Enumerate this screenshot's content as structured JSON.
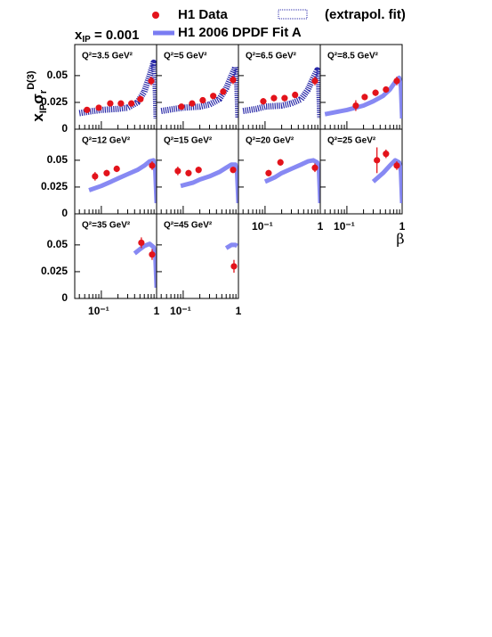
{
  "chart_data": {
    "type": "scatter",
    "xip_label": {
      "main": "x",
      "sub": "IP",
      "rest": " = 0.001"
    },
    "ylabel": {
      "main": "x",
      "sub": "IP",
      "sigma": "σ",
      "sigma_sub": "r",
      "sup": "D(3)"
    },
    "xlabel": "β",
    "log_x": true,
    "xlim": [
      0.033,
      1
    ],
    "xticks": [
      {
        "value": 0.1,
        "label": "10⁻¹"
      },
      1
    ],
    "xminor": [
      0.04,
      0.05,
      0.06,
      0.07,
      0.08,
      0.09,
      0.2,
      0.3,
      0.4,
      0.5,
      0.6,
      0.7,
      0.8,
      0.9
    ],
    "ylim": [
      0,
      0.079
    ],
    "yticks": [
      0,
      0.025,
      0.05
    ],
    "series": [
      {
        "name": "H1 Data",
        "color": "#e3131b"
      },
      {
        "name": "H1 2006 DPDF Fit A",
        "color": "#7a7cf2"
      },
      {
        "name": "(extrapol. fit)",
        "color": "#2a2aa8"
      }
    ],
    "panels": [
      {
        "label": "Q²=3.5 GeV²",
        "fit": "extrapol",
        "x": [
          0.055,
          0.09,
          0.145,
          0.226,
          0.35,
          0.51,
          0.8
        ],
        "values": [
          0.018,
          0.02,
          0.024,
          0.024,
          0.024,
          0.028,
          0.045
        ],
        "errors": [
          0.002,
          0.002,
          0.002,
          0.002,
          0.002,
          0.002,
          0.004
        ],
        "fit_x": [
          0.04,
          0.07,
          0.1,
          0.2,
          0.3,
          0.45,
          0.6,
          0.75,
          0.88,
          0.95,
          1.0
        ],
        "fit_values": [
          0.015,
          0.017,
          0.018,
          0.019,
          0.02,
          0.025,
          0.035,
          0.05,
          0.062,
          0.05,
          0.01
        ]
      },
      {
        "label": "Q²=5 GeV²",
        "fit": "extrapol",
        "x": [
          0.093,
          0.145,
          0.226,
          0.35,
          0.53,
          0.8
        ],
        "values": [
          0.021,
          0.024,
          0.027,
          0.031,
          0.035,
          0.046
        ],
        "errors": [
          0.002,
          0.002,
          0.002,
          0.002,
          0.002,
          0.004
        ],
        "fit_x": [
          0.04,
          0.07,
          0.1,
          0.2,
          0.3,
          0.45,
          0.6,
          0.75,
          0.88,
          0.95,
          1.0
        ],
        "fit_values": [
          0.017,
          0.019,
          0.02,
          0.021,
          0.023,
          0.028,
          0.038,
          0.05,
          0.058,
          0.045,
          0.01
        ]
      },
      {
        "label": "Q²=6.5 GeV²",
        "fit": "extrapol",
        "x": [
          0.093,
          0.145,
          0.226,
          0.35,
          0.8
        ],
        "values": [
          0.026,
          0.029,
          0.029,
          0.032,
          0.045
        ],
        "errors": [
          0.003,
          0.003,
          0.003,
          0.003,
          0.004
        ],
        "fit_x": [
          0.04,
          0.07,
          0.1,
          0.2,
          0.3,
          0.45,
          0.6,
          0.75,
          0.88,
          0.95,
          1.0
        ],
        "fit_values": [
          0.017,
          0.019,
          0.021,
          0.022,
          0.024,
          0.028,
          0.037,
          0.048,
          0.055,
          0.045,
          0.01
        ]
      },
      {
        "label": "Q²=8.5 GeV²",
        "fit": "band",
        "x": [
          0.145,
          0.21,
          0.33,
          0.51,
          0.8
        ],
        "values": [
          0.022,
          0.03,
          0.034,
          0.037,
          0.045
        ],
        "errors": [
          0.005,
          0.003,
          0.003,
          0.003,
          0.004
        ],
        "fit_x": [
          0.04,
          0.1,
          0.2,
          0.3,
          0.45,
          0.6,
          0.75,
          0.88,
          0.95,
          1.0
        ],
        "fit_values": [
          0.014,
          0.018,
          0.022,
          0.026,
          0.031,
          0.037,
          0.044,
          0.048,
          0.04,
          0.01
        ]
      },
      {
        "label": "Q²=12 GeV²",
        "fit": "band",
        "x": [
          0.077,
          0.125,
          0.19,
          0.83
        ],
        "values": [
          0.035,
          0.038,
          0.042,
          0.045
        ],
        "errors": [
          0.004,
          0.003,
          0.003,
          0.004
        ],
        "fit_x": [
          0.06,
          0.1,
          0.15,
          0.2,
          0.3,
          0.45,
          0.6,
          0.75,
          0.88,
          0.95,
          1.0
        ],
        "fit_values": [
          0.022,
          0.026,
          0.03,
          0.033,
          0.037,
          0.041,
          0.045,
          0.049,
          0.05,
          0.04,
          0.01
        ]
      },
      {
        "label": "Q²=15 GeV²",
        "fit": "band",
        "x": [
          0.08,
          0.125,
          0.19,
          0.8
        ],
        "values": [
          0.04,
          0.038,
          0.041,
          0.041
        ],
        "errors": [
          0.004,
          0.003,
          0.003,
          0.003
        ],
        "fit_x": [
          0.09,
          0.15,
          0.2,
          0.3,
          0.45,
          0.6,
          0.75,
          0.88,
          0.95,
          1.0
        ],
        "fit_values": [
          0.026,
          0.029,
          0.032,
          0.035,
          0.039,
          0.043,
          0.046,
          0.046,
          0.037,
          0.01
        ]
      },
      {
        "label": "Q²=20 GeV²",
        "fit": "band",
        "x": [
          0.116,
          0.19,
          0.8
        ],
        "values": [
          0.038,
          0.048,
          0.043
        ],
        "errors": [
          0.003,
          0.003,
          0.004
        ],
        "fit_x": [
          0.1,
          0.15,
          0.2,
          0.3,
          0.45,
          0.6,
          0.75,
          0.88,
          0.95,
          1.0
        ],
        "fit_values": [
          0.03,
          0.034,
          0.038,
          0.042,
          0.046,
          0.049,
          0.05,
          0.048,
          0.04,
          0.01
        ]
      },
      {
        "label": "Q²=25 GeV²",
        "fit": "band",
        "x": [
          0.35,
          0.51,
          0.8
        ],
        "values": [
          0.05,
          0.056,
          0.045
        ],
        "errors": [
          0.012,
          0.004,
          0.004
        ],
        "fit_x": [
          0.3,
          0.45,
          0.6,
          0.75,
          0.88,
          0.95,
          1.0
        ],
        "fit_values": [
          0.03,
          0.038,
          0.045,
          0.05,
          0.048,
          0.04,
          0.01
        ]
      },
      {
        "label": "Q²=35 GeV²",
        "fit": "band",
        "x": [
          0.53,
          0.83
        ],
        "values": [
          0.052,
          0.041
        ],
        "errors": [
          0.005,
          0.005
        ],
        "fit_x": [
          0.4,
          0.5,
          0.6,
          0.75,
          0.88,
          0.95,
          1.0
        ],
        "fit_values": [
          0.042,
          0.046,
          0.049,
          0.051,
          0.048,
          0.04,
          0.01
        ]
      },
      {
        "label": "Q²=45 GeV²",
        "fit": "band",
        "x": [
          0.83
        ],
        "values": [
          0.03
        ],
        "errors": [
          0.006
        ],
        "fit_x": [
          0.6,
          0.75,
          0.88,
          0.95
        ],
        "fit_values": [
          0.047,
          0.05,
          0.05,
          0.049
        ]
      }
    ]
  }
}
